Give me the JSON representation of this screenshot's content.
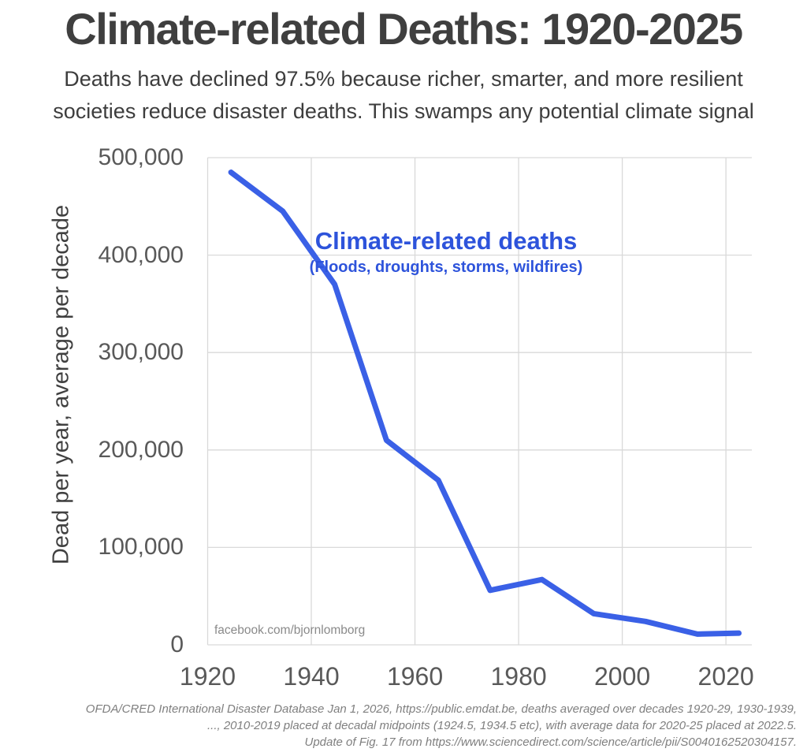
{
  "header": {
    "title": "Climate-related Deaths: 1920-2025",
    "subtitle_line1": "Deaths have declined 97.5% because richer, smarter, and more resilient",
    "subtitle_line2": "societies reduce disaster deaths. This swamps any potential climate signal"
  },
  "chart_data": {
    "type": "line",
    "title": "Climate-related Deaths: 1920-2025",
    "series_name": "Climate-related deaths",
    "x": [
      1924.5,
      1934.5,
      1944.5,
      1954.5,
      1964.5,
      1974.5,
      1984.5,
      1994.5,
      2004.5,
      2014.5,
      2022.5
    ],
    "values": [
      485000,
      445000,
      370000,
      210000,
      169000,
      56000,
      67000,
      32000,
      24000,
      11000,
      12000
    ],
    "xlabel": "",
    "ylabel": "Dead per year, average per decade",
    "x_ticks": [
      1920,
      1940,
      1960,
      1980,
      2000,
      2020
    ],
    "x_tick_labels": [
      "1920",
      "1940",
      "1960",
      "1980",
      "2000",
      "2020"
    ],
    "y_ticks": [
      0,
      100000,
      200000,
      300000,
      400000,
      500000
    ],
    "y_tick_labels": [
      "0",
      "100,000",
      "200,000",
      "300,000",
      "400,000",
      "500,000"
    ],
    "xlim": [
      1920,
      2025
    ],
    "ylim": [
      0,
      500000
    ],
    "grid": true,
    "legend_position": "none",
    "annotation": {
      "title": "Climate-related deaths",
      "subtitle": "(Floods, droughts, storms, wildfires)"
    },
    "line_color": "#3a60e6",
    "gridline_color": "#d9d9d9",
    "annotation_color": "#2d53db"
  },
  "watermark": "facebook.com/bjornlomborg",
  "footer": {
    "line1": "OFDA/CRED International Disaster Database Jan 1, 2026,  https://public.emdat.be, deaths averaged over decades 1920-29, 1930-1939,",
    "line2": "..., 2010-2019 placed at decadal midpoints (1924.5, 1934.5 etc), with average data for 2020-25 placed at 2022.5.",
    "line3": "Update of Fig. 17 from https://www.sciencedirect.com/science/article/pii/S0040162520304157."
  },
  "colors": {
    "title_text": "#3f3f3f",
    "tick_text": "#595959",
    "footer_text": "#7f7f7f",
    "background": "#ffffff"
  }
}
